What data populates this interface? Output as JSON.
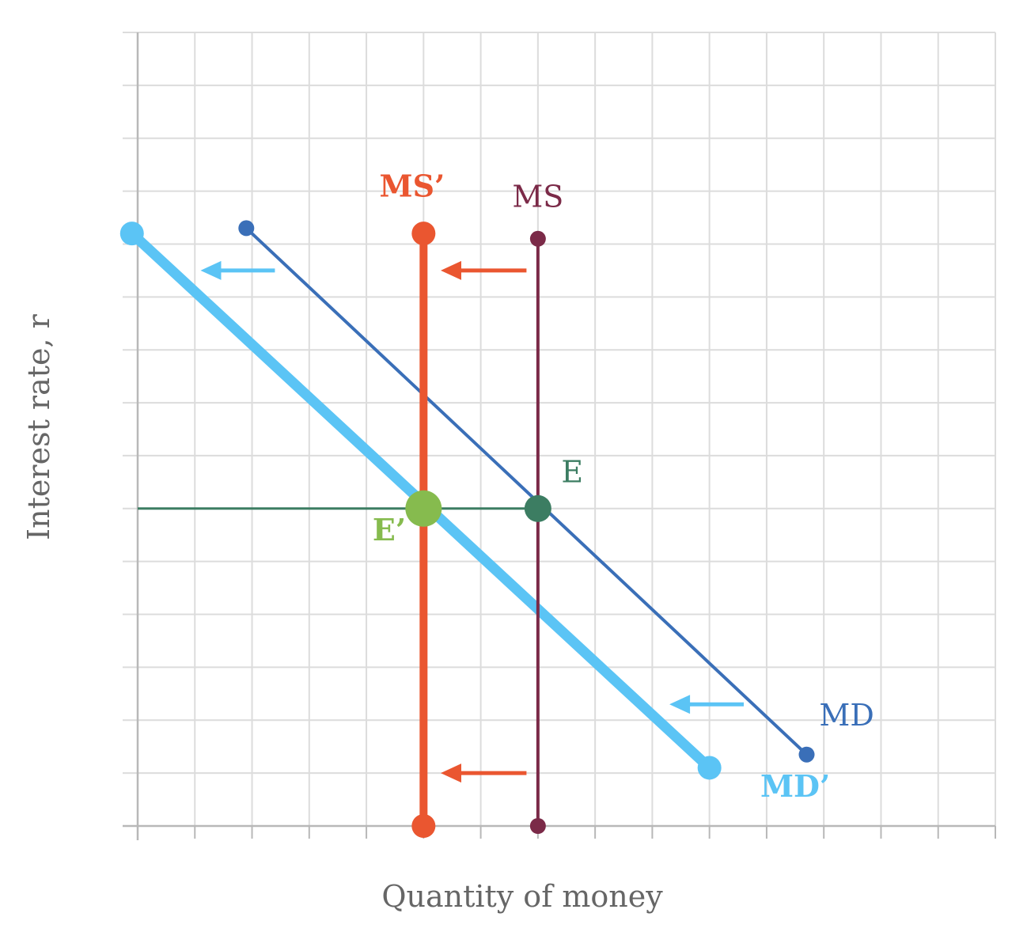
{
  "chart_data": {
    "type": "line",
    "title": "",
    "xlabel": "Quantity of money",
    "ylabel": "Interest rate, r",
    "xlim": [
      0,
      15
    ],
    "ylim": [
      0,
      15
    ],
    "grid": true,
    "legend": "none",
    "series": [
      {
        "name": "MD",
        "color": "#3a6fb8",
        "width": 4,
        "endpoint_radius": 10,
        "points": [
          [
            1.9,
            11.3
          ],
          [
            11.7,
            1.35
          ]
        ]
      },
      {
        "name": "MD’",
        "color": "#5bc4f5",
        "width": 13,
        "endpoint_radius": 15,
        "points": [
          [
            -0.1,
            11.2
          ],
          [
            10.0,
            1.1
          ]
        ]
      },
      {
        "name": "MS",
        "color": "#7b2a48",
        "width": 4,
        "endpoint_radius": 10,
        "points": [
          [
            7.0,
            11.1
          ],
          [
            7.0,
            0.0
          ]
        ]
      },
      {
        "name": "MS’",
        "color": "#ea5630",
        "width": 10,
        "endpoint_radius": 15,
        "points": [
          [
            5.0,
            11.2
          ],
          [
            5.0,
            0.0
          ]
        ]
      }
    ],
    "equilibrium_line": {
      "color": "#3c7d62",
      "from_x": 0,
      "to_x": 7.0,
      "y": 6.0
    },
    "equilibria": [
      {
        "name": "E",
        "x": 7.0,
        "y": 6.0,
        "color": "#3c7d62"
      },
      {
        "name": "E’",
        "x": 5.0,
        "y": 6.0,
        "color": "#86bb4e"
      }
    ],
    "shift_arrows": [
      {
        "color": "#5bc4f5",
        "x_from": 2.4,
        "x_to": 1.1,
        "y": 10.5
      },
      {
        "color": "#ea5630",
        "x_from": 6.8,
        "x_to": 5.3,
        "y": 10.5
      },
      {
        "color": "#5bc4f5",
        "x_from": 10.6,
        "x_to": 9.3,
        "y": 2.3
      },
      {
        "color": "#ea5630",
        "x_from": 6.8,
        "x_to": 5.3,
        "y": 1.0
      }
    ],
    "labels": [
      {
        "text": "MS’",
        "color": "#ea5630",
        "bold": true,
        "x": 4.8,
        "y": 11.9
      },
      {
        "text": "MS",
        "color": "#7b2a48",
        "bold": false,
        "x": 7.0,
        "y": 11.7
      },
      {
        "text": "E",
        "color": "#3c7d62",
        "bold": false,
        "x": 7.6,
        "y": 6.5
      },
      {
        "text": "E’",
        "color": "#86bb4e",
        "bold": true,
        "x": 4.4,
        "y": 5.4
      },
      {
        "text": "MD",
        "color": "#3a6fb8",
        "bold": false,
        "x": 12.4,
        "y": 1.9
      },
      {
        "text": "MD’",
        "color": "#5bc4f5",
        "bold": true,
        "x": 11.5,
        "y": 0.55
      }
    ]
  }
}
